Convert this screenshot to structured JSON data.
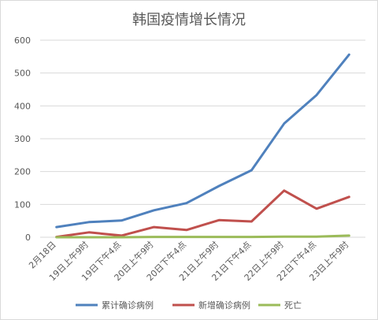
{
  "chart_data": {
    "type": "line",
    "title": "韩国疫情增长情况",
    "categories": [
      "2月18日",
      "19日上午9时",
      "19日下午4点",
      "20日上午9时",
      "20日下午4点",
      "21日上午9时",
      "21日下午4点",
      "22日上午9时",
      "22日下午4点",
      "23日上午9时"
    ],
    "ylim": [
      0,
      600
    ],
    "yticks": [
      0,
      100,
      200,
      300,
      400,
      500,
      600
    ],
    "grid": true,
    "legend_position": "bottom",
    "series": [
      {
        "name": "累计确诊病例",
        "color": "#4f81bd",
        "values": [
          31,
          46,
          51,
          82,
          104,
          156,
          204,
          346,
          433,
          556
        ]
      },
      {
        "name": "新增确诊病例",
        "color": "#c0504d",
        "values": [
          1,
          15,
          5,
          31,
          22,
          52,
          48,
          142,
          87,
          123
        ]
      },
      {
        "name": "死亡",
        "color": "#9bbb59",
        "values": [
          0,
          0,
          0,
          1,
          1,
          1,
          1,
          2,
          2,
          5
        ]
      }
    ]
  }
}
